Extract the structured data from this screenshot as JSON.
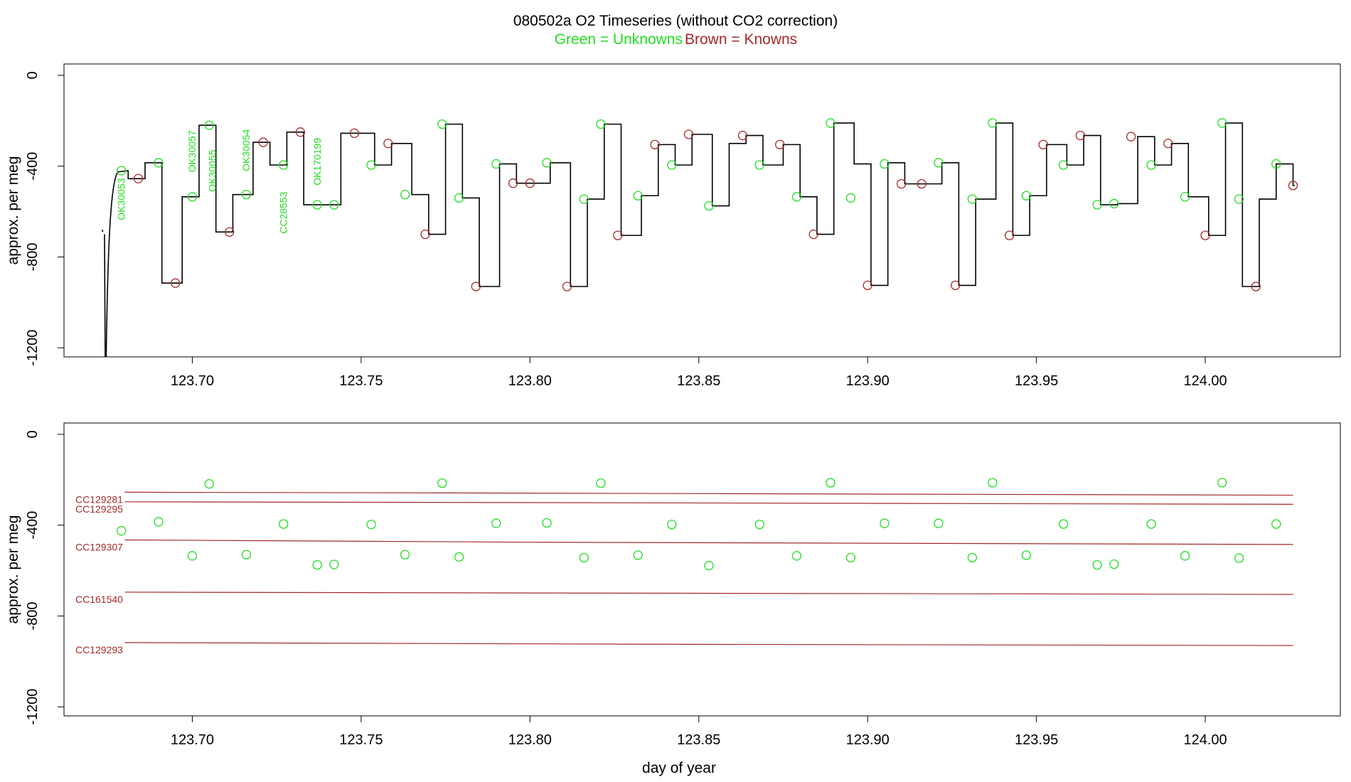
{
  "title": "080502a   O2 Timeseries (without CO2 correction)",
  "subtitle_green": "Green = Unknowns",
  "subtitle_brown": "Brown = Knowns",
  "colors": {
    "unknown": "#22dd22",
    "known": "#a52a2a",
    "trace": "#000000",
    "axis": "#000000"
  },
  "chart_data": [
    {
      "type": "line",
      "title": "080502a   O2 Timeseries (without CO2 correction)",
      "xlabel": "",
      "ylabel": "approx. per meg",
      "xlim": [
        123.662,
        124.04
      ],
      "ylim": [
        -1240,
        50
      ],
      "yticks": [
        0,
        -400,
        -800,
        -1200
      ],
      "yticklabels": [
        "0",
        "-400",
        "-800",
        "-1200"
      ],
      "xticks": [
        123.7,
        123.75,
        123.8,
        123.85,
        123.9,
        123.95,
        124.0
      ],
      "xticklabels": [
        "123.70",
        "123.75",
        "123.80",
        "123.85",
        "123.90",
        "123.95",
        "124.00"
      ],
      "grid": false,
      "steps": [
        [
          123.676,
          123.681,
          -420
        ],
        [
          123.681,
          123.686,
          -455
        ],
        [
          123.686,
          123.691,
          -385
        ],
        [
          123.691,
          123.697,
          -915
        ],
        [
          123.697,
          123.702,
          -535
        ],
        [
          123.702,
          123.707,
          -220
        ],
        [
          123.707,
          123.712,
          -690
        ],
        [
          123.712,
          123.718,
          -525
        ],
        [
          123.718,
          123.723,
          -295
        ],
        [
          123.723,
          123.728,
          -395
        ],
        [
          123.728,
          123.733,
          -250
        ],
        [
          123.733,
          123.744,
          -570
        ],
        [
          123.744,
          123.754,
          -255
        ],
        [
          123.754,
          123.759,
          -395
        ],
        [
          123.759,
          123.765,
          -300
        ],
        [
          123.765,
          123.77,
          -525
        ],
        [
          123.77,
          123.775,
          -700
        ],
        [
          123.775,
          123.78,
          -215
        ],
        [
          123.78,
          123.785,
          -540
        ],
        [
          123.785,
          123.791,
          -930
        ],
        [
          123.791,
          123.796,
          -390
        ],
        [
          123.796,
          123.801,
          -475
        ],
        [
          123.801,
          123.806,
          -475
        ],
        [
          123.806,
          123.812,
          -385
        ],
        [
          123.812,
          123.817,
          -930
        ],
        [
          123.817,
          123.822,
          -545
        ],
        [
          123.822,
          123.827,
          -215
        ],
        [
          123.827,
          123.833,
          -705
        ],
        [
          123.833,
          123.838,
          -530
        ],
        [
          123.838,
          123.843,
          -305
        ],
        [
          123.843,
          123.848,
          -395
        ],
        [
          123.848,
          123.854,
          -260
        ],
        [
          123.854,
          123.859,
          -575
        ],
        [
          123.859,
          123.864,
          -300
        ],
        [
          123.864,
          123.869,
          -265
        ],
        [
          123.869,
          123.875,
          -395
        ],
        [
          123.875,
          123.88,
          -305
        ],
        [
          123.88,
          123.885,
          -535
        ],
        [
          123.885,
          123.89,
          -700
        ],
        [
          123.89,
          123.896,
          -210
        ],
        [
          123.896,
          123.901,
          -390
        ],
        [
          123.901,
          123.906,
          -925
        ],
        [
          123.906,
          123.911,
          -385
        ],
        [
          123.911,
          123.917,
          -478
        ],
        [
          123.917,
          123.922,
          -478
        ],
        [
          123.922,
          123.927,
          -385
        ],
        [
          123.927,
          123.932,
          -925
        ],
        [
          123.932,
          123.938,
          -545
        ],
        [
          123.938,
          123.943,
          -210
        ],
        [
          123.943,
          123.948,
          -705
        ],
        [
          123.948,
          123.953,
          -530
        ],
        [
          123.953,
          123.959,
          -305
        ],
        [
          123.959,
          123.964,
          -395
        ],
        [
          123.964,
          123.969,
          -265
        ],
        [
          123.969,
          123.974,
          -570
        ],
        [
          123.974,
          123.98,
          -565
        ],
        [
          123.98,
          123.985,
          -270
        ],
        [
          123.985,
          123.99,
          -395
        ],
        [
          123.99,
          123.995,
          -300
        ],
        [
          123.995,
          124.001,
          -535
        ],
        [
          124.001,
          124.006,
          -705
        ],
        [
          124.006,
          124.011,
          -210
        ],
        [
          124.011,
          124.016,
          -930
        ],
        [
          124.016,
          124.021,
          -545
        ],
        [
          124.021,
          124.026,
          -390
        ],
        [
          124.026,
          124.0265,
          -485
        ]
      ],
      "unknown_markers": [
        [
          123.679,
          -420
        ],
        [
          123.69,
          -385
        ],
        [
          123.7,
          -535
        ],
        [
          123.705,
          -220
        ],
        [
          123.716,
          -525
        ],
        [
          123.727,
          -395
        ],
        [
          123.737,
          -570
        ],
        [
          123.742,
          -570
        ],
        [
          123.753,
          -395
        ],
        [
          123.763,
          -525
        ],
        [
          123.774,
          -215
        ],
        [
          123.779,
          -540
        ],
        [
          123.79,
          -390
        ],
        [
          123.805,
          -385
        ],
        [
          123.816,
          -545
        ],
        [
          123.821,
          -215
        ],
        [
          123.832,
          -530
        ],
        [
          123.842,
          -395
        ],
        [
          123.853,
          -575
        ],
        [
          123.868,
          -395
        ],
        [
          123.879,
          -535
        ],
        [
          123.889,
          -210
        ],
        [
          123.895,
          -540
        ],
        [
          123.905,
          -390
        ],
        [
          123.921,
          -385
        ],
        [
          123.931,
          -545
        ],
        [
          123.937,
          -210
        ],
        [
          123.947,
          -530
        ],
        [
          123.958,
          -395
        ],
        [
          123.968,
          -570
        ],
        [
          123.973,
          -565
        ],
        [
          123.984,
          -395
        ],
        [
          123.994,
          -535
        ],
        [
          124.005,
          -210
        ],
        [
          124.01,
          -545
        ],
        [
          124.021,
          -390
        ]
      ],
      "known_markers": [
        [
          123.684,
          -455
        ],
        [
          123.695,
          -915
        ],
        [
          123.711,
          -690
        ],
        [
          123.721,
          -295
        ],
        [
          123.732,
          -250
        ],
        [
          123.748,
          -255
        ],
        [
          123.758,
          -300
        ],
        [
          123.769,
          -700
        ],
        [
          123.784,
          -930
        ],
        [
          123.795,
          -475
        ],
        [
          123.8,
          -475
        ],
        [
          123.811,
          -930
        ],
        [
          123.826,
          -705
        ],
        [
          123.837,
          -305
        ],
        [
          123.847,
          -260
        ],
        [
          123.863,
          -265
        ],
        [
          123.874,
          -305
        ],
        [
          123.884,
          -700
        ],
        [
          123.9,
          -925
        ],
        [
          123.91,
          -478
        ],
        [
          123.916,
          -478
        ],
        [
          123.926,
          -925
        ],
        [
          123.942,
          -705
        ],
        [
          123.952,
          -305
        ],
        [
          123.963,
          -265
        ],
        [
          123.978,
          -270
        ],
        [
          123.989,
          -300
        ],
        [
          124.0,
          -705
        ],
        [
          124.015,
          -930
        ],
        [
          124.026,
          -485
        ]
      ],
      "sample_labels": [
        {
          "text": "OK30053",
          "x": 123.68,
          "y": -545
        },
        {
          "text": "OK30057",
          "x": 123.701,
          "y": -335
        },
        {
          "text": "OK30055",
          "x": 123.707,
          "y": -420
        },
        {
          "text": "OK30054",
          "x": 123.717,
          "y": -330
        },
        {
          "text": "CC28553",
          "x": 123.728,
          "y": -605
        },
        {
          "text": "OK170199",
          "x": 123.738,
          "y": -380
        }
      ]
    },
    {
      "type": "scatter",
      "xlabel": "day of year",
      "ylabel": "approx. per meg",
      "xlim": [
        123.662,
        124.04
      ],
      "ylim": [
        -1240,
        50
      ],
      "yticks": [
        0,
        -400,
        -800,
        -1200
      ],
      "yticklabels": [
        "0",
        "-400",
        "-800",
        "-1200"
      ],
      "xticks": [
        123.7,
        123.75,
        123.8,
        123.85,
        123.9,
        123.95,
        124.0
      ],
      "xticklabels": [
        "123.70",
        "123.75",
        "123.80",
        "123.85",
        "123.90",
        "123.95",
        "124.00"
      ],
      "grid": false,
      "series": [
        {
          "name": "CC129281",
          "x": [
            123.68,
            123.75,
            124.026
          ],
          "y": [
            -255,
            -257,
            -268
          ]
        },
        {
          "name": "CC129295",
          "x": [
            123.68,
            123.75,
            124.026
          ],
          "y": [
            -297,
            -299,
            -308
          ]
        },
        {
          "name": "CC129307",
          "x": [
            123.68,
            123.8,
            124.026
          ],
          "y": [
            -465,
            -475,
            -485
          ]
        },
        {
          "name": "CC161540",
          "x": [
            123.68,
            123.85,
            124.026
          ],
          "y": [
            -695,
            -700,
            -705
          ]
        },
        {
          "name": "CC129293",
          "x": [
            123.68,
            123.85,
            124.026
          ],
          "y": [
            -917,
            -925,
            -930
          ]
        }
      ],
      "unknown_points": [
        [
          123.679,
          -425
        ],
        [
          123.69,
          -385
        ],
        [
          123.7,
          -535
        ],
        [
          123.705,
          -218
        ],
        [
          123.716,
          -530
        ],
        [
          123.727,
          -395
        ],
        [
          123.737,
          -575
        ],
        [
          123.742,
          -573
        ],
        [
          123.753,
          -397
        ],
        [
          123.763,
          -530
        ],
        [
          123.774,
          -215
        ],
        [
          123.779,
          -540
        ],
        [
          123.79,
          -392
        ],
        [
          123.805,
          -390
        ],
        [
          123.816,
          -543
        ],
        [
          123.821,
          -215
        ],
        [
          123.832,
          -532
        ],
        [
          123.842,
          -397
        ],
        [
          123.853,
          -578
        ],
        [
          123.868,
          -397
        ],
        [
          123.879,
          -535
        ],
        [
          123.889,
          -213
        ],
        [
          123.895,
          -543
        ],
        [
          123.905,
          -392
        ],
        [
          123.921,
          -392
        ],
        [
          123.931,
          -543
        ],
        [
          123.937,
          -213
        ],
        [
          123.947,
          -532
        ],
        [
          123.958,
          -395
        ],
        [
          123.968,
          -575
        ],
        [
          123.973,
          -572
        ],
        [
          123.984,
          -395
        ],
        [
          123.994,
          -535
        ],
        [
          124.005,
          -213
        ],
        [
          124.01,
          -545
        ],
        [
          124.021,
          -395
        ]
      ]
    }
  ]
}
